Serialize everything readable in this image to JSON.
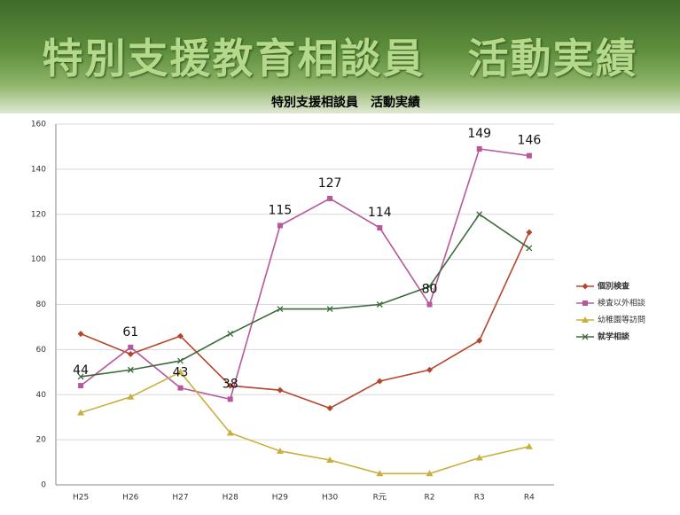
{
  "header": {
    "title": "特別支援教育相談員　活動実績"
  },
  "chart_data": {
    "type": "line",
    "title": "特別支援相談員　活動実績",
    "categories": [
      "H25",
      "H26",
      "H27",
      "H28",
      "H29",
      "H30",
      "R元",
      "R2",
      "R3",
      "R4"
    ],
    "series": [
      {
        "name": "個別検査",
        "color": "#b5462a",
        "marker": "diamond",
        "values": [
          67,
          58,
          66,
          44,
          42,
          34,
          46,
          51,
          64,
          112
        ]
      },
      {
        "name": "検査以外相談",
        "color": "#b6589a",
        "marker": "square",
        "show_labels": true,
        "values": [
          44,
          61,
          43,
          38,
          115,
          127,
          114,
          80,
          149,
          146
        ]
      },
      {
        "name": "幼稚園等訪問",
        "color": "#c9b03c",
        "marker": "triangle",
        "values": [
          32,
          39,
          50,
          23,
          15,
          11,
          5,
          5,
          12,
          17
        ]
      },
      {
        "name": "就学相談",
        "color": "#3d6b3a",
        "marker": "x",
        "values": [
          48,
          51,
          55,
          67,
          78,
          78,
          80,
          88,
          120,
          105
        ]
      }
    ],
    "ylim": [
      0,
      160
    ],
    "yticks": [
      0,
      20,
      40,
      60,
      80,
      100,
      120,
      140,
      160
    ],
    "grid": true,
    "legend": "right"
  }
}
